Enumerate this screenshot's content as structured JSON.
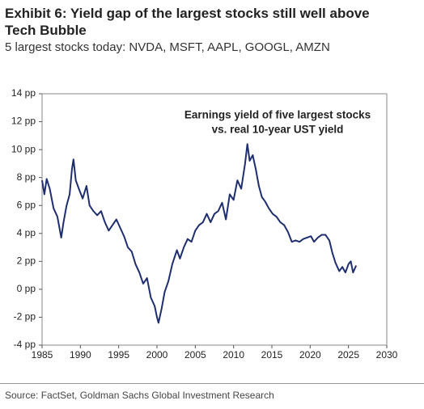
{
  "chart_data": {
    "type": "line",
    "title": "Exhibit 6: Yield gap of the largest stocks still well above Tech Bubble",
    "subtitle": "5 largest stocks today: NVDA, MSFT, AAPL, GOOGL, AMZN",
    "annotation": [
      "Earnings yield of five largest stocks",
      "vs. real 10-year UST yield"
    ],
    "source": "Source: FactSet, Goldman Sachs Global Investment Research",
    "color": "#1f2e6e",
    "x": [
      1985.0,
      1985.3,
      1985.6,
      1986.0,
      1986.5,
      1987.0,
      1987.5,
      1987.8,
      1988.2,
      1988.6,
      1988.9,
      1989.1,
      1989.4,
      1989.8,
      1990.3,
      1990.8,
      1991.2,
      1991.7,
      1992.2,
      1992.7,
      1993.2,
      1993.7,
      1994.2,
      1994.7,
      1995.2,
      1995.7,
      1996.2,
      1996.7,
      1997.2,
      1997.7,
      1998.2,
      1998.7,
      1999.2,
      1999.7,
      2000.0,
      2000.2,
      2000.6,
      2001.0,
      2001.5,
      2002.0,
      2002.6,
      2003.0,
      2003.5,
      2004.0,
      2004.5,
      2005.0,
      2005.5,
      2006.0,
      2006.5,
      2007.0,
      2007.5,
      2008.0,
      2008.5,
      2009.0,
      2009.5,
      2010.0,
      2010.5,
      2011.0,
      2011.5,
      2011.8,
      2012.1,
      2012.5,
      2012.9,
      2013.3,
      2013.7,
      2014.1,
      2014.6,
      2015.1,
      2015.6,
      2016.1,
      2016.6,
      2017.1,
      2017.6,
      2018.1,
      2018.6,
      2019.1,
      2019.6,
      2020.1,
      2020.5,
      2021.0,
      2021.5,
      2022.0,
      2022.5,
      2022.9,
      2023.3,
      2023.8,
      2024.2,
      2024.6,
      2025.0,
      2025.3,
      2025.6,
      2026.0
    ],
    "values": [
      7.8,
      6.8,
      7.9,
      7.2,
      5.8,
      5.2,
      3.7,
      4.8,
      6.0,
      6.8,
      8.6,
      9.3,
      7.8,
      7.2,
      6.5,
      7.4,
      6.0,
      5.6,
      5.3,
      5.6,
      4.8,
      4.2,
      4.6,
      5.0,
      4.4,
      3.8,
      3.0,
      2.7,
      1.8,
      1.2,
      0.4,
      0.8,
      -0.6,
      -1.2,
      -2.0,
      -2.4,
      -1.4,
      -0.2,
      0.6,
      1.8,
      2.8,
      2.2,
      3.0,
      3.6,
      3.4,
      4.2,
      4.6,
      4.8,
      5.4,
      4.8,
      5.4,
      5.6,
      6.2,
      5.0,
      6.8,
      6.4,
      7.8,
      7.2,
      9.0,
      10.4,
      9.2,
      9.6,
      8.6,
      7.4,
      6.6,
      6.3,
      5.8,
      5.4,
      5.2,
      4.8,
      4.6,
      4.1,
      3.4,
      3.5,
      3.4,
      3.6,
      3.7,
      3.8,
      3.4,
      3.7,
      3.9,
      3.9,
      3.5,
      2.6,
      1.9,
      1.3,
      1.6,
      1.2,
      1.8,
      2.0,
      1.2,
      1.7
    ],
    "xlim": [
      1985,
      2030
    ],
    "xticks": [
      1985,
      1990,
      1995,
      2000,
      2005,
      2010,
      2015,
      2020,
      2025,
      2030
    ],
    "ylim": [
      -4,
      14
    ],
    "yticks": [
      {
        "value": -4,
        "label": "-4 pp"
      },
      {
        "value": -2,
        "label": "-2 pp"
      },
      {
        "value": 0,
        "label": "0 pp"
      },
      {
        "value": 2,
        "label": "2 pp"
      },
      {
        "value": 4,
        "label": "4 pp"
      },
      {
        "value": 6,
        "label": "6 pp"
      },
      {
        "value": 8,
        "label": "8 pp"
      },
      {
        "value": 10,
        "label": "10 pp"
      },
      {
        "value": 12,
        "label": "12 pp"
      },
      {
        "value": 14,
        "label": "14 pp"
      }
    ],
    "grid": false
  }
}
